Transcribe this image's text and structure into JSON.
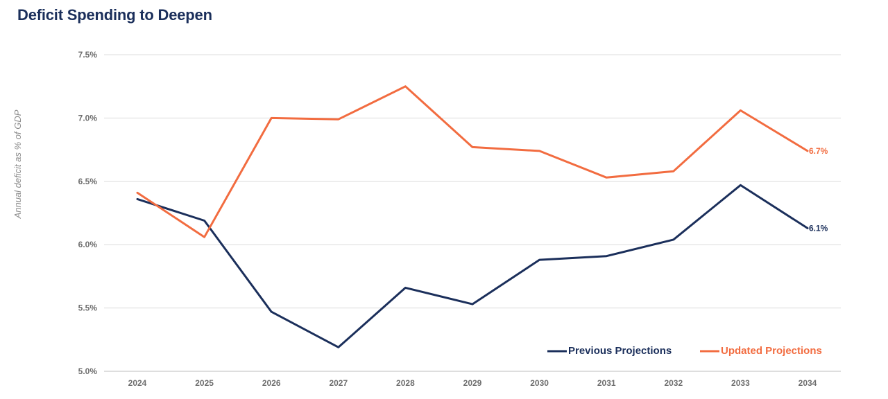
{
  "title": "Deficit Spending to Deepen",
  "chart_data": {
    "type": "line",
    "title": "Deficit Spending to Deepen",
    "ylabel": "Annual deficit as % of GDP",
    "xlabel": "",
    "categories": [
      "2024",
      "2025",
      "2026",
      "2027",
      "2028",
      "2029",
      "2030",
      "2031",
      "2032",
      "2033",
      "2034"
    ],
    "ylim": [
      5.0,
      7.5
    ],
    "yticks": [
      5.0,
      5.5,
      6.0,
      6.5,
      7.0,
      7.5
    ],
    "ytick_labels": [
      "5.0%",
      "5.5%",
      "6.0%",
      "6.5%",
      "7.0%",
      "7.5%"
    ],
    "grid": true,
    "legend_position": "bottom-right",
    "series": [
      {
        "name": "Previous Projections",
        "color": "#1b2f5b",
        "values": [
          6.36,
          6.19,
          5.47,
          5.19,
          5.66,
          5.53,
          5.88,
          5.91,
          6.04,
          6.47,
          6.13
        ],
        "end_label": "6.1%"
      },
      {
        "name": "Updated Projections",
        "color": "#f26c40",
        "values": [
          6.41,
          6.06,
          7.0,
          6.99,
          7.25,
          6.77,
          6.74,
          6.53,
          6.58,
          7.06,
          6.74
        ],
        "end_label": "6.7%"
      }
    ]
  }
}
